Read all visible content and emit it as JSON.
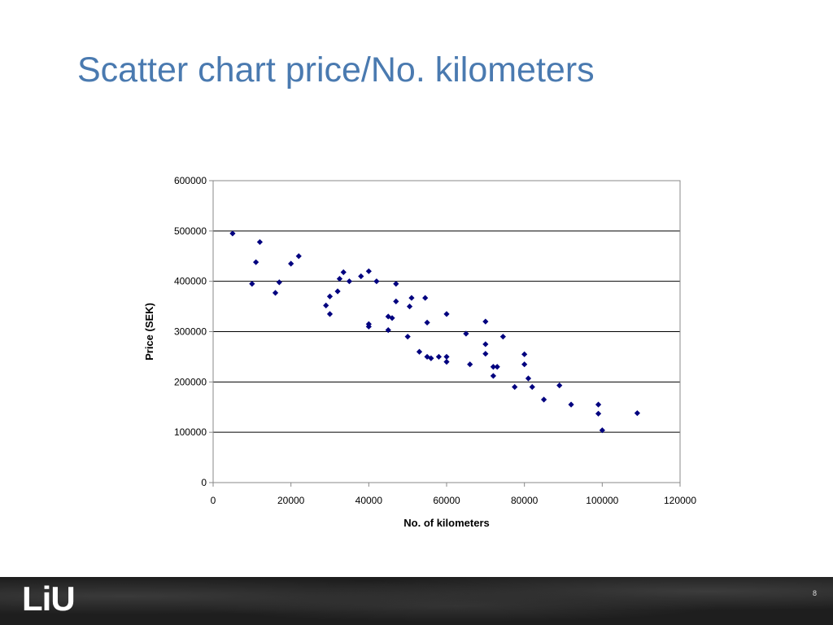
{
  "slide": {
    "title": "Scatter chart price/No. kilometers",
    "page_number": "8",
    "logo_text": "LiU"
  },
  "colors": {
    "title": "#4a7ab0",
    "marker": "#00007f",
    "gridline": "#000000",
    "footer": "#1e1e1e"
  },
  "chart_data": {
    "type": "scatter",
    "title": "",
    "xlabel": "No. of kilometers",
    "ylabel": "Price (SEK)",
    "xlim": [
      0,
      120000
    ],
    "ylim": [
      0,
      600000
    ],
    "xticks": [
      "0",
      "20000",
      "40000",
      "60000",
      "80000",
      "100000",
      "120000"
    ],
    "yticks": [
      "0",
      "100000",
      "200000",
      "300000",
      "400000",
      "500000",
      "600000"
    ],
    "grid": "horizontal",
    "legend": "none",
    "marker": "diamond",
    "points": [
      [
        5000,
        495000
      ],
      [
        10000,
        395000
      ],
      [
        11000,
        438000
      ],
      [
        12000,
        478000
      ],
      [
        16000,
        377000
      ],
      [
        17000,
        398000
      ],
      [
        20000,
        435000
      ],
      [
        22000,
        450000
      ],
      [
        29000,
        352000
      ],
      [
        30000,
        370000
      ],
      [
        30000,
        335000
      ],
      [
        32000,
        380000
      ],
      [
        32500,
        405000
      ],
      [
        33500,
        418000
      ],
      [
        35000,
        400000
      ],
      [
        38000,
        410000
      ],
      [
        40000,
        420000
      ],
      [
        40000,
        315000
      ],
      [
        40000,
        310000
      ],
      [
        42000,
        400000
      ],
      [
        45000,
        330000
      ],
      [
        45000,
        303000
      ],
      [
        46000,
        327000
      ],
      [
        47000,
        395000
      ],
      [
        47000,
        360000
      ],
      [
        50000,
        290000
      ],
      [
        50500,
        350000
      ],
      [
        51000,
        367000
      ],
      [
        53000,
        260000
      ],
      [
        54500,
        367000
      ],
      [
        55000,
        318000
      ],
      [
        55000,
        250000
      ],
      [
        56000,
        247000
      ],
      [
        58000,
        250000
      ],
      [
        60000,
        335000
      ],
      [
        60000,
        250000
      ],
      [
        60000,
        240000
      ],
      [
        65000,
        296000
      ],
      [
        66000,
        235000
      ],
      [
        70000,
        320000
      ],
      [
        70000,
        275000
      ],
      [
        70000,
        256000
      ],
      [
        72000,
        230000
      ],
      [
        72000,
        212000
      ],
      [
        73000,
        230000
      ],
      [
        74500,
        290000
      ],
      [
        77500,
        190000
      ],
      [
        80000,
        255000
      ],
      [
        80000,
        235000
      ],
      [
        81000,
        207000
      ],
      [
        82000,
        190000
      ],
      [
        85000,
        165000
      ],
      [
        89000,
        193000
      ],
      [
        92000,
        155000
      ],
      [
        99000,
        155000
      ],
      [
        99000,
        137000
      ],
      [
        100000,
        104000
      ],
      [
        109000,
        138000
      ]
    ]
  }
}
